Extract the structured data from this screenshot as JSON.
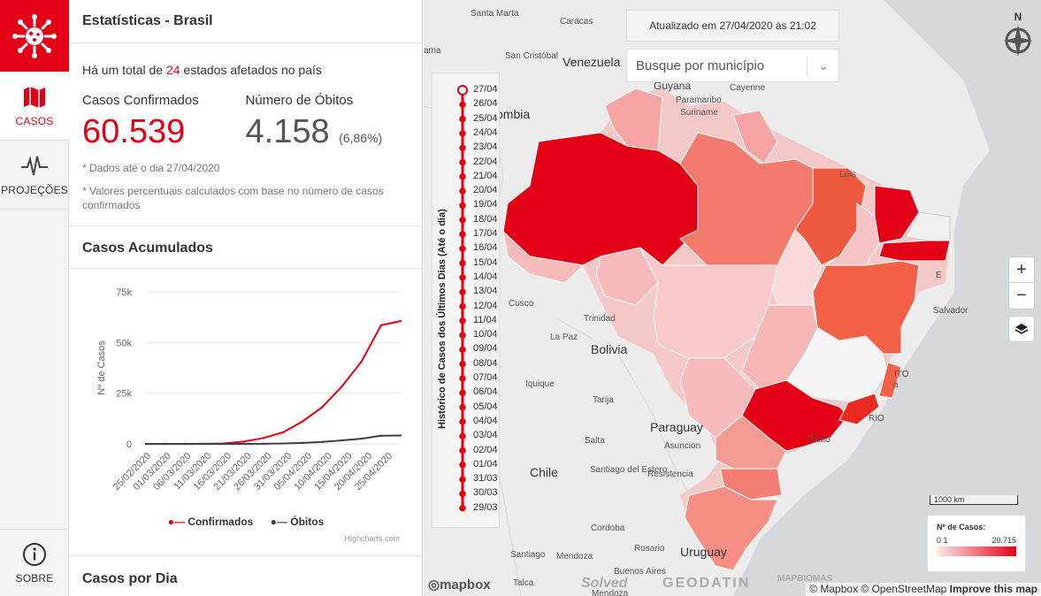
{
  "rail": {
    "items": [
      {
        "label": "CASOS",
        "icon": "map-icon"
      },
      {
        "label": "PROJEÇÕES",
        "icon": "pulse-icon"
      }
    ],
    "bottom": {
      "label": "SOBRE",
      "icon": "info-icon"
    }
  },
  "panel": {
    "title": "Estatísticas - Brasil",
    "total_prefix": "Há um total de",
    "total_count": "24",
    "total_suffix": "estados afetados no país",
    "confirmed_label": "Casos Confirmados",
    "confirmed_value": "60.539",
    "deaths_label": "Número de Óbitos",
    "deaths_value": "4.158",
    "deaths_pct": "(6,86%)",
    "note_date": "* Dados até o dia 27/04/2020",
    "note_pct": "* Valores percentuais calculados com base no número de casos confirmados",
    "accum_title": "Casos Acumulados",
    "daily_title": "Casos por Dia",
    "credit": "Highcharts.com"
  },
  "chart_data": {
    "type": "line",
    "title": "Casos Acumulados",
    "xlabel": "",
    "ylabel": "Nº de Casos",
    "ylim": [
      0,
      75000
    ],
    "yticks": [
      "0",
      "25k",
      "50k",
      "75k"
    ],
    "xticks": [
      "25/02/2020",
      "01/03/2020",
      "06/03/2020",
      "11/03/2020",
      "16/03/2020",
      "21/03/2020",
      "26/03/2020",
      "31/03/2020",
      "05/04/2020",
      "10/04/2020",
      "15/04/2020",
      "20/04/2020",
      "25/04/2020"
    ],
    "legend_position": "bottom",
    "grid": true,
    "x": [
      "25/02",
      "01/03",
      "06/03",
      "11/03",
      "16/03",
      "21/03",
      "26/03",
      "31/03",
      "05/04",
      "10/04",
      "15/04",
      "20/04",
      "25/04",
      "27/04"
    ],
    "series": [
      {
        "name": "Confirmados",
        "color": "#e40014",
        "values": [
          1,
          2,
          13,
          69,
          234,
          1128,
          2915,
          5717,
          11130,
          18176,
          28320,
          40581,
          58509,
          60539
        ]
      },
      {
        "name": "Óbitos",
        "color": "#3b4147",
        "values": [
          0,
          0,
          0,
          0,
          0,
          18,
          77,
          201,
          486,
          957,
          1736,
          2575,
          4016,
          4158
        ]
      }
    ]
  },
  "map": {
    "updated": "Atualizado em 27/04/2020 às 21:02",
    "search_placeholder": "Busque por município",
    "timeline_title": "Histórico de Casos dos Últimos Dias (Até o dia)",
    "timeline_dates": [
      "27/04",
      "26/04",
      "25/04",
      "24/04",
      "23/04",
      "22/04",
      "21/04",
      "20/04",
      "19/04",
      "18/04",
      "17/04",
      "16/04",
      "15/04",
      "14/04",
      "13/04",
      "12/04",
      "11/04",
      "10/04",
      "09/04",
      "08/04",
      "07/04",
      "06/04",
      "05/04",
      "04/04",
      "03/04",
      "02/04",
      "01/04",
      "31/03",
      "30/03",
      "29/03"
    ],
    "places": [
      {
        "name": "Santa Marta",
        "cls": "place"
      },
      {
        "name": "Caracas",
        "cls": "place"
      },
      {
        "name": "San Cristóbal",
        "cls": "place"
      },
      {
        "name": "Venezuela",
        "cls": "place big"
      },
      {
        "name": "Guyana",
        "cls": "place"
      },
      {
        "name": "Paramaribo",
        "cls": "place"
      },
      {
        "name": "Cayenne",
        "cls": "place"
      },
      {
        "name": "Suriname",
        "cls": "place"
      },
      {
        "name": "ombia",
        "cls": "place big"
      },
      {
        "name": "Luís",
        "cls": "place"
      },
      {
        "name": "Cusco",
        "cls": "place"
      },
      {
        "name": "Trinidad",
        "cls": "place"
      },
      {
        "name": "La Paz",
        "cls": "place"
      },
      {
        "name": "Bolivia",
        "cls": "place big"
      },
      {
        "name": "Iquique",
        "cls": "place"
      },
      {
        "name": "Tarija",
        "cls": "place"
      },
      {
        "name": "Salvador",
        "cls": "place"
      },
      {
        "name": "Paraguay",
        "cls": "place big"
      },
      {
        "name": "Asuncion",
        "cls": "place"
      },
      {
        "name": "Salta",
        "cls": "place"
      },
      {
        "name": "Chile",
        "cls": "place big"
      },
      {
        "name": "Santiago del Estero",
        "cls": "place"
      },
      {
        "name": "Resistencia",
        "cls": "place"
      },
      {
        "name": "Cordoba",
        "cls": "place"
      },
      {
        "name": "Rosario",
        "cls": "place"
      },
      {
        "name": "Uruguay",
        "cls": "place big"
      },
      {
        "name": "Santiago",
        "cls": "place"
      },
      {
        "name": "Buenos Aires",
        "cls": "place"
      },
      {
        "name": "Talca",
        "cls": "place"
      },
      {
        "name": "Mendoza",
        "cls": "place"
      },
      {
        "name": "Paulo",
        "cls": "place"
      },
      {
        "name": "RIO",
        "cls": "place"
      },
      {
        "name": "ITO",
        "cls": "place"
      },
      {
        "name": "a",
        "cls": "place"
      },
      {
        "name": "E",
        "cls": "place"
      },
      {
        "name": "ama",
        "cls": "place"
      },
      {
        "name": "Mendoza",
        "cls": "place"
      }
    ],
    "scale_label": "1000 km",
    "legend_title": "Nº de Casos:",
    "legend_min_a": "0",
    "legend_min_b": "1",
    "legend_max": "20.715",
    "attribution_prefix": "© Mapbox © OpenStreetMap",
    "attribution_link": "Improve this map",
    "mapbox_logo": "mapbox",
    "partner_a": "Solved",
    "partner_b": "GEODATIN",
    "partner_c": "MAPBIOMAS",
    "compass_letter": "N",
    "zoom_in": "+",
    "zoom_out": "−"
  }
}
